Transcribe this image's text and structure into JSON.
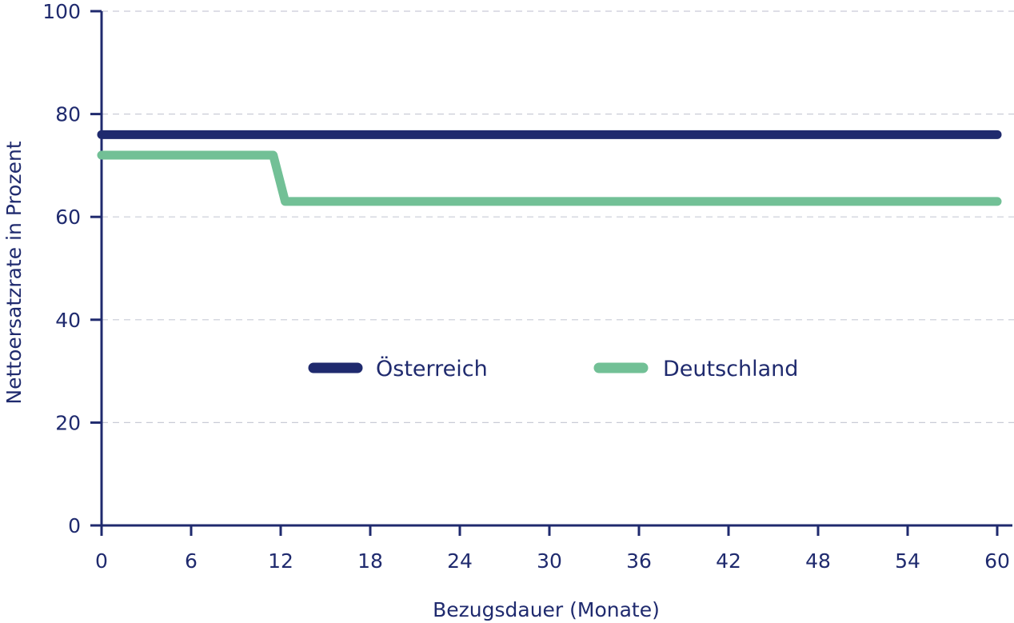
{
  "chart_data": {
    "type": "line",
    "xlabel": "Bezugsdauer (Monate)",
    "ylabel": "Nettoersatzrate in Prozent",
    "xlim": [
      0,
      60
    ],
    "ylim": [
      0,
      100
    ],
    "x_ticks": [
      0,
      6,
      12,
      18,
      24,
      30,
      36,
      42,
      48,
      54,
      60
    ],
    "y_ticks": [
      0,
      20,
      40,
      60,
      80,
      100
    ],
    "grid": "horizontal dashed",
    "legend_position": "center",
    "axis_color": "#1f2a6e",
    "series": [
      {
        "name": "Österreich",
        "color": "#1f2a6e",
        "x": [
          0,
          60
        ],
        "y": [
          76,
          76
        ]
      },
      {
        "name": "Deutschland",
        "color": "#72c096",
        "x": [
          0,
          11.5,
          12.3,
          60
        ],
        "y": [
          72,
          72,
          63,
          63
        ]
      }
    ]
  }
}
